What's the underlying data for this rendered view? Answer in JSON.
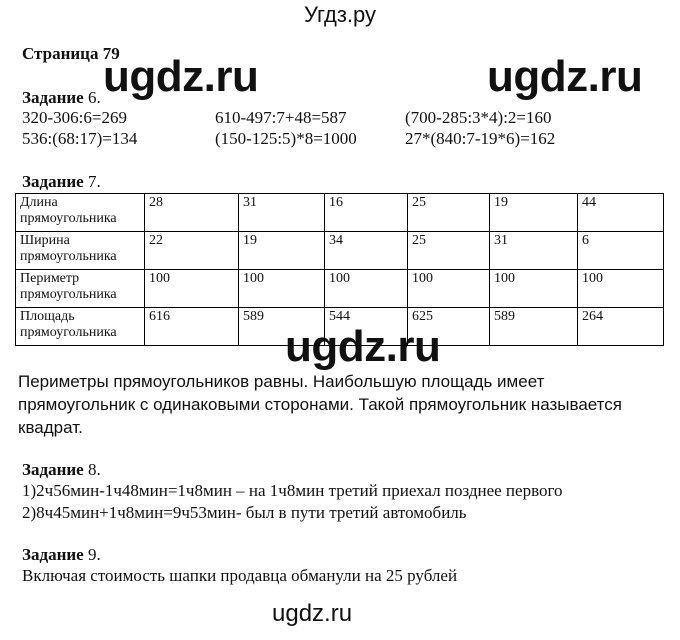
{
  "site_title": "Угдз.ру",
  "watermark": "ugdz.ru",
  "page_heading": "Страница 79",
  "task6": {
    "label": "Задание",
    "num": "6.",
    "rows": [
      [
        "320-306:6=269",
        "610-497:7+48=587",
        "(700-285:3*4):2=160"
      ],
      [
        "536:(68:17)=134",
        "(150-125:5)*8=1000",
        "27*(840:7-19*6)=162"
      ]
    ]
  },
  "task7": {
    "label": "Задание",
    "num": "7.",
    "table": [
      {
        "header": "Длина прямоугольника",
        "values": [
          "28",
          "31",
          "16",
          "25",
          "19",
          "44"
        ]
      },
      {
        "header": "Ширина прямоугольника",
        "values": [
          "22",
          "19",
          "34",
          "25",
          "31",
          "6"
        ]
      },
      {
        "header": "Периметр прямоугольника",
        "values": [
          "100",
          "100",
          "100",
          "100",
          "100",
          "100"
        ]
      },
      {
        "header": "Площадь прямоугольника",
        "values": [
          "616",
          "589",
          "544",
          "625",
          "589",
          "264"
        ]
      }
    ],
    "text_lines": [
      "Периметры прямоугольников равны. Наибольшую площадь имеет",
      "прямоугольник с одинаковыми сторонами. Такой прямоугольник называется",
      "квадрат."
    ]
  },
  "task8": {
    "label": "Задание",
    "num": "8.",
    "lines": [
      "1)2ч56мин-1ч48мин=1ч8мин – на 1ч8мин третий  приехал позднее первого",
      "2)8ч45мин+1ч8мин=9ч53мин- был в пути третий автомобиль"
    ]
  },
  "task9": {
    "label": "Задание",
    "num": "9.",
    "lines": [
      "Включая стоимость шапки продавца обманули на 25 рублей"
    ]
  }
}
